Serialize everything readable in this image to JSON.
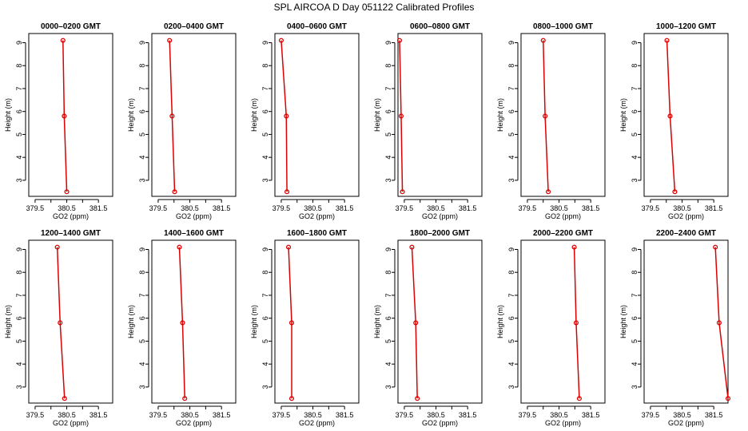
{
  "figure": {
    "title": "SPL AIRCOA D  Day 051122  Calibrated Profiles"
  },
  "colors": {
    "series": "#dd0000",
    "frame": "#000000"
  },
  "chart_data": [
    {
      "type": "line",
      "title": "0000–0200 GMT",
      "xlabel": "GO2 (ppm)",
      "ylabel": "Height (m)",
      "xlim": [
        379.3,
        381.95
      ],
      "ylim": [
        2.3,
        9.4
      ],
      "xticks": [
        379.5,
        380.5,
        381.5
      ],
      "xtick_labels": [
        "379.5",
        "380.5",
        "381.5"
      ],
      "yticks": [
        3,
        4,
        5,
        6,
        7,
        8,
        9
      ],
      "grid": false,
      "points": [
        {
          "x": 380.38,
          "y": 9.1
        },
        {
          "x": 380.42,
          "y": 5.8
        },
        {
          "x": 380.5,
          "y": 2.5
        }
      ]
    },
    {
      "type": "line",
      "title": "0200–0400 GMT",
      "xlabel": "GO2 (ppm)",
      "ylabel": "Height (m)",
      "xlim": [
        379.3,
        381.95
      ],
      "ylim": [
        2.3,
        9.4
      ],
      "xticks": [
        379.5,
        380.5,
        381.5
      ],
      "xtick_labels": [
        "379.5",
        "380.5",
        "381.5"
      ],
      "yticks": [
        3,
        4,
        5,
        6,
        7,
        8,
        9
      ],
      "grid": false,
      "points": [
        {
          "x": 379.86,
          "y": 9.1
        },
        {
          "x": 379.94,
          "y": 5.8
        },
        {
          "x": 380.02,
          "y": 2.5
        }
      ]
    },
    {
      "type": "line",
      "title": "0400–0600 GMT",
      "xlabel": "GO2 (ppm)",
      "ylabel": "Height (m)",
      "xlim": [
        379.3,
        381.95
      ],
      "ylim": [
        2.3,
        9.4
      ],
      "xticks": [
        379.5,
        380.5,
        381.5
      ],
      "xtick_labels": [
        "379.5",
        "380.5",
        "381.5"
      ],
      "yticks": [
        3,
        4,
        5,
        6,
        7,
        8,
        9
      ],
      "grid": false,
      "points": [
        {
          "x": 379.5,
          "y": 9.1
        },
        {
          "x": 379.66,
          "y": 5.8
        },
        {
          "x": 379.68,
          "y": 2.5
        }
      ]
    },
    {
      "type": "line",
      "title": "0600–0800 GMT",
      "xlabel": "GO2 (ppm)",
      "ylabel": "Height (m)",
      "xlim": [
        379.3,
        381.95
      ],
      "ylim": [
        2.3,
        9.4
      ],
      "xticks": [
        379.5,
        380.5,
        381.5
      ],
      "xtick_labels": [
        "379.5",
        "380.5",
        "381.5"
      ],
      "yticks": [
        3,
        4,
        5,
        6,
        7,
        8,
        9
      ],
      "grid": false,
      "points": [
        {
          "x": 379.35,
          "y": 9.1
        },
        {
          "x": 379.4,
          "y": 5.8
        },
        {
          "x": 379.44,
          "y": 2.5
        }
      ]
    },
    {
      "type": "line",
      "title": "0800–1000 GMT",
      "xlabel": "GO2 (ppm)",
      "ylabel": "Height (m)",
      "xlim": [
        379.3,
        381.95
      ],
      "ylim": [
        2.3,
        9.4
      ],
      "xticks": [
        379.5,
        380.5,
        381.5
      ],
      "xtick_labels": [
        "379.5",
        "380.5",
        "381.5"
      ],
      "yticks": [
        3,
        4,
        5,
        6,
        7,
        8,
        9
      ],
      "grid": false,
      "points": [
        {
          "x": 380.0,
          "y": 9.1
        },
        {
          "x": 380.06,
          "y": 5.8
        },
        {
          "x": 380.16,
          "y": 2.5
        }
      ]
    },
    {
      "type": "line",
      "title": "1000–1200 GMT",
      "xlabel": "GO2 (ppm)",
      "ylabel": "Height (m)",
      "xlim": [
        379.3,
        381.95
      ],
      "ylim": [
        2.3,
        9.4
      ],
      "xticks": [
        379.5,
        380.5,
        381.5
      ],
      "xtick_labels": [
        "379.5",
        "380.5",
        "381.5"
      ],
      "yticks": [
        3,
        4,
        5,
        6,
        7,
        8,
        9
      ],
      "grid": false,
      "points": [
        {
          "x": 380.02,
          "y": 9.1
        },
        {
          "x": 380.12,
          "y": 5.8
        },
        {
          "x": 380.27,
          "y": 2.5
        }
      ]
    },
    {
      "type": "line",
      "title": "1200–1400 GMT",
      "xlabel": "GO2 (ppm)",
      "ylabel": "Height (m)",
      "xlim": [
        379.3,
        381.95
      ],
      "ylim": [
        2.3,
        9.4
      ],
      "xticks": [
        379.5,
        380.5,
        381.5
      ],
      "xtick_labels": [
        "379.5",
        "380.5",
        "381.5"
      ],
      "yticks": [
        3,
        4,
        5,
        6,
        7,
        8,
        9
      ],
      "grid": false,
      "points": [
        {
          "x": 380.2,
          "y": 9.1
        },
        {
          "x": 380.29,
          "y": 5.8
        },
        {
          "x": 380.43,
          "y": 2.5
        }
      ]
    },
    {
      "type": "line",
      "title": "1400–1600 GMT",
      "xlabel": "GO2 (ppm)",
      "ylabel": "Height (m)",
      "xlim": [
        379.3,
        381.95
      ],
      "ylim": [
        2.3,
        9.4
      ],
      "xticks": [
        379.5,
        380.5,
        381.5
      ],
      "xtick_labels": [
        "379.5",
        "380.5",
        "381.5"
      ],
      "yticks": [
        3,
        4,
        5,
        6,
        7,
        8,
        9
      ],
      "grid": false,
      "points": [
        {
          "x": 380.17,
          "y": 9.1
        },
        {
          "x": 380.27,
          "y": 5.8
        },
        {
          "x": 380.34,
          "y": 2.5
        }
      ]
    },
    {
      "type": "line",
      "title": "1600–1800 GMT",
      "xlabel": "GO2 (ppm)",
      "ylabel": "Height (m)",
      "xlim": [
        379.3,
        381.95
      ],
      "ylim": [
        2.3,
        9.4
      ],
      "xticks": [
        379.5,
        380.5,
        381.5
      ],
      "xtick_labels": [
        "379.5",
        "380.5",
        "381.5"
      ],
      "yticks": [
        3,
        4,
        5,
        6,
        7,
        8,
        9
      ],
      "grid": false,
      "points": [
        {
          "x": 379.73,
          "y": 9.1
        },
        {
          "x": 379.83,
          "y": 5.8
        },
        {
          "x": 379.83,
          "y": 2.5
        }
      ]
    },
    {
      "type": "line",
      "title": "1800–2000 GMT",
      "xlabel": "GO2 (ppm)",
      "ylabel": "Height (m)",
      "xlim": [
        379.3,
        381.95
      ],
      "ylim": [
        2.3,
        9.4
      ],
      "xticks": [
        379.5,
        380.5,
        381.5
      ],
      "xtick_labels": [
        "379.5",
        "380.5",
        "381.5"
      ],
      "yticks": [
        3,
        4,
        5,
        6,
        7,
        8,
        9
      ],
      "grid": false,
      "points": [
        {
          "x": 379.74,
          "y": 9.1
        },
        {
          "x": 379.86,
          "y": 5.8
        },
        {
          "x": 379.91,
          "y": 2.5
        }
      ]
    },
    {
      "type": "line",
      "title": "2000–2200 GMT",
      "xlabel": "GO2 (ppm)",
      "ylabel": "Height (m)",
      "xlim": [
        379.3,
        381.95
      ],
      "ylim": [
        2.3,
        9.4
      ],
      "xticks": [
        379.5,
        380.5,
        381.5
      ],
      "xtick_labels": [
        "379.5",
        "380.5",
        "381.5"
      ],
      "yticks": [
        3,
        4,
        5,
        6,
        7,
        8,
        9
      ],
      "grid": false,
      "points": [
        {
          "x": 380.98,
          "y": 9.1
        },
        {
          "x": 381.04,
          "y": 5.8
        },
        {
          "x": 381.14,
          "y": 2.5
        }
      ]
    },
    {
      "type": "line",
      "title": "2200–2400 GMT",
      "xlabel": "GO2 (ppm)",
      "ylabel": "Height (m)",
      "xlim": [
        379.3,
        381.95
      ],
      "ylim": [
        2.3,
        9.4
      ],
      "xticks": [
        379.5,
        380.5,
        381.5
      ],
      "xtick_labels": [
        "379.5",
        "380.5",
        "381.5"
      ],
      "yticks": [
        3,
        4,
        5,
        6,
        7,
        8,
        9
      ],
      "grid": false,
      "points": [
        {
          "x": 381.55,
          "y": 9.1
        },
        {
          "x": 381.67,
          "y": 5.8
        },
        {
          "x": 381.95,
          "y": 2.5
        }
      ]
    }
  ]
}
